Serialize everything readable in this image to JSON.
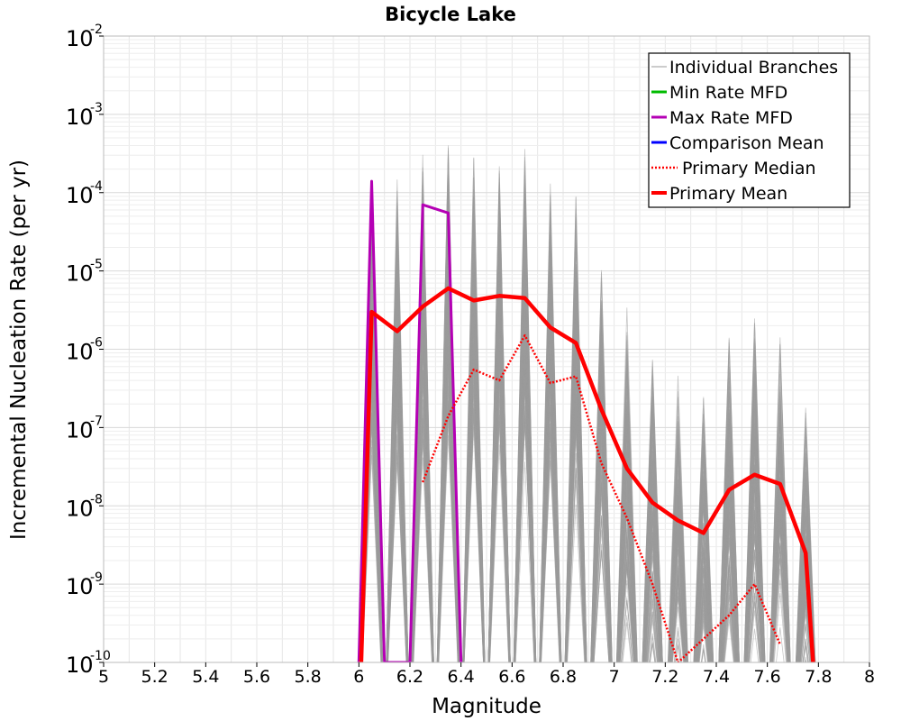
{
  "chart_data": {
    "type": "line",
    "title": "Bicycle Lake",
    "xlabel": "Magnitude",
    "ylabel": "Incremental Nucleation Rate (per yr)",
    "xlim": [
      5,
      8
    ],
    "ylim": [
      1e-10,
      0.01
    ],
    "yscale": "log",
    "x_ticks": [
      "5",
      "5.2",
      "5.4",
      "5.6",
      "5.8",
      "6",
      "6.2",
      "6.4",
      "6.6",
      "6.8",
      "7",
      "7.2",
      "7.4",
      "7.6",
      "7.8",
      "8"
    ],
    "y_ticks": [
      {
        "base": "10",
        "exp": "-10",
        "value": 1e-10
      },
      {
        "base": "10",
        "exp": "-9",
        "value": 1e-09
      },
      {
        "base": "10",
        "exp": "-8",
        "value": 1e-08
      },
      {
        "base": "10",
        "exp": "-7",
        "value": 1e-07
      },
      {
        "base": "10",
        "exp": "-6",
        "value": 1e-06
      },
      {
        "base": "10",
        "exp": "-5",
        "value": 1e-05
      },
      {
        "base": "10",
        "exp": "-4",
        "value": 0.0001
      },
      {
        "base": "10",
        "exp": "-3",
        "value": 0.001
      },
      {
        "base": "10",
        "exp": "-2",
        "value": 0.01
      }
    ],
    "grid": true,
    "legend_position": "top-right",
    "series": [
      {
        "name": "Individual Branches",
        "color": "#9a9a9a",
        "style": "thin",
        "x": [],
        "values": []
      },
      {
        "name": "Min Rate MFD",
        "color": "#00bb00",
        "style": "solid",
        "x": [],
        "values": []
      },
      {
        "name": "Max Rate MFD",
        "color": "#b400b4",
        "style": "solid",
        "x": [
          6.0,
          6.05,
          6.1,
          6.2,
          6.25,
          6.35,
          6.4
        ],
        "values": [
          1e-10,
          0.00014,
          1e-10,
          1e-10,
          7e-05,
          5.5e-05,
          1e-10
        ]
      },
      {
        "name": "Comparison Mean",
        "color": "#0000ff",
        "style": "solid",
        "x": [],
        "values": []
      },
      {
        "name": "Primary Median",
        "color": "#ff0000",
        "style": "dotted",
        "x": [
          6.25,
          6.35,
          6.45,
          6.55,
          6.65,
          6.75,
          6.85,
          6.95,
          7.05,
          7.15,
          7.25,
          7.45,
          7.55,
          7.65
        ],
        "values": [
          2e-08,
          1.4e-07,
          5.5e-07,
          4e-07,
          1.5e-06,
          3.7e-07,
          4.5e-07,
          3.5e-08,
          7e-09,
          1e-09,
          1e-10,
          4e-10,
          1e-09,
          1.7e-10
        ]
      },
      {
        "name": "Primary Mean",
        "color": "#ff0000",
        "style": "thick",
        "x": [
          6.05,
          6.15,
          6.25,
          6.35,
          6.45,
          6.55,
          6.65,
          6.75,
          6.85,
          6.95,
          7.05,
          7.15,
          7.25,
          7.35,
          7.45,
          7.55,
          7.65,
          7.75
        ],
        "values": [
          3e-06,
          1.7e-06,
          3.5e-06,
          6e-06,
          4.2e-06,
          4.8e-06,
          4.5e-06,
          1.9e-06,
          1.2e-06,
          1.7e-07,
          3e-08,
          1.1e-08,
          6.5e-09,
          4.5e-09,
          1.6e-08,
          2.5e-08,
          1.9e-08,
          2.5e-09
        ]
      }
    ]
  }
}
